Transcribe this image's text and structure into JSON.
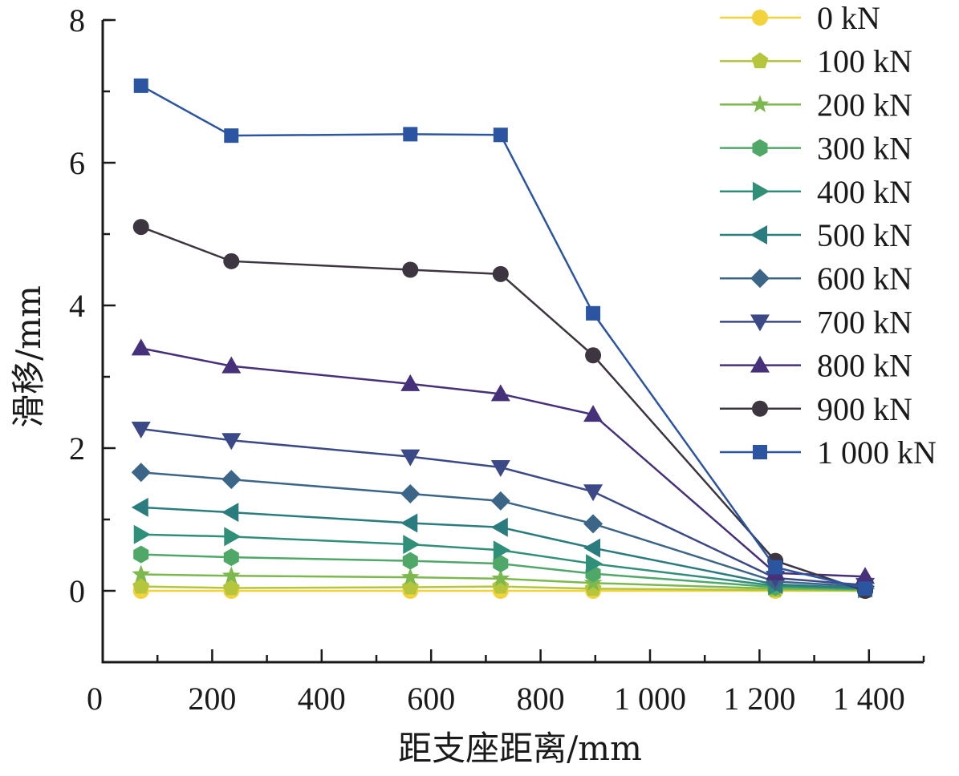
{
  "chart_data": {
    "type": "line",
    "title": "",
    "xlabel": "距支座距离/mm",
    "ylabel": "滑移/mm",
    "xlim": [
      0,
      1500
    ],
    "ylim": [
      -1,
      8
    ],
    "x_ticks": [
      0,
      200,
      400,
      600,
      800,
      1000,
      1200,
      1400
    ],
    "x_tick_labels": [
      "0",
      "200",
      "400",
      "600",
      "800",
      "1 000",
      "1 200",
      "1 400"
    ],
    "x_minor_step": 100,
    "y_ticks": [
      0,
      2,
      4,
      6,
      8
    ],
    "y_tick_labels": [
      "0",
      "2",
      "4",
      "6",
      "8"
    ],
    "y_minor_step": 1,
    "grid": false,
    "legend_position": "top-right",
    "x": [
      70,
      235,
      562,
      727,
      896,
      1229,
      1393
    ],
    "series": [
      {
        "name": "0 kN",
        "color": "#f2d33c",
        "marker": "circle",
        "values": [
          0.0,
          0.0,
          0.0,
          0.0,
          0.0,
          0.0,
          0.0
        ]
      },
      {
        "name": "100 kN",
        "color": "#b5c63c",
        "marker": "pentagon",
        "values": [
          0.06,
          0.04,
          0.05,
          0.06,
          0.03,
          0.01,
          0.0
        ]
      },
      {
        "name": "200 kN",
        "color": "#7db84e",
        "marker": "star",
        "values": [
          0.23,
          0.21,
          0.19,
          0.17,
          0.11,
          0.03,
          0.01
        ]
      },
      {
        "name": "300 kN",
        "color": "#4fa867",
        "marker": "hexagon",
        "values": [
          0.51,
          0.47,
          0.42,
          0.38,
          0.24,
          0.05,
          0.02
        ]
      },
      {
        "name": "400 kN",
        "color": "#2f8f78",
        "marker": "triangle-right",
        "values": [
          0.79,
          0.76,
          0.65,
          0.57,
          0.38,
          0.07,
          0.03
        ]
      },
      {
        "name": "500 kN",
        "color": "#2b7c7e",
        "marker": "triangle-left",
        "values": [
          1.17,
          1.1,
          0.95,
          0.89,
          0.6,
          0.09,
          0.04
        ]
      },
      {
        "name": "600 kN",
        "color": "#3c6688",
        "marker": "diamond",
        "values": [
          1.66,
          1.56,
          1.36,
          1.26,
          0.94,
          0.13,
          0.06
        ]
      },
      {
        "name": "700 kN",
        "color": "#3b4a87",
        "marker": "triangle-down",
        "values": [
          2.27,
          2.11,
          1.88,
          1.73,
          1.39,
          0.18,
          0.08
        ]
      },
      {
        "name": "800 kN",
        "color": "#46307a",
        "marker": "triangle-up",
        "values": [
          3.4,
          3.15,
          2.9,
          2.76,
          2.47,
          0.25,
          0.2
        ]
      },
      {
        "name": "900 kN",
        "color": "#3d3540",
        "marker": "circle",
        "values": [
          5.1,
          4.62,
          4.5,
          4.44,
          3.3,
          0.42,
          0.0
        ]
      },
      {
        "name": "1 000 kN",
        "color": "#2b55a0",
        "marker": "square",
        "values": [
          7.08,
          6.38,
          6.4,
          6.39,
          3.89,
          0.33,
          0.03
        ]
      }
    ]
  }
}
